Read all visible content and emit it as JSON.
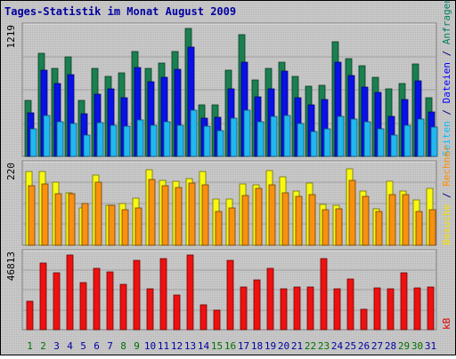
{
  "chart_data": {
    "type": "bar",
    "title": "Tages-Statistik im Monat August 2009",
    "categories": [
      "1",
      "2",
      "3",
      "4",
      "5",
      "6",
      "7",
      "8",
      "9",
      "10",
      "11",
      "12",
      "13",
      "14",
      "15",
      "16",
      "17",
      "18",
      "19",
      "20",
      "21",
      "22",
      "23",
      "24",
      "25",
      "26",
      "27",
      "28",
      "29",
      "30",
      "31"
    ],
    "weekend_days": [
      "1",
      "2",
      "8",
      "9",
      "15",
      "16",
      "22",
      "23",
      "29",
      "30"
    ],
    "panels": [
      {
        "id": "requests",
        "max_label": "1219",
        "ylim": [
          0,
          1219
        ],
        "right_label_parts": [
          {
            "text": "Seiten",
            "color": "#00BFFF"
          },
          {
            "text": " / ",
            "color": "#000080"
          },
          {
            "text": "Dateien",
            "color": "#0000FF"
          },
          {
            "text": " / ",
            "color": "#000080"
          },
          {
            "text": "Anfragen",
            "color": "#008060"
          }
        ],
        "series": [
          {
            "name": "Anfragen",
            "color": "#1A8050",
            "values": [
              530,
              980,
              840,
              945,
              530,
              835,
              765,
              795,
              1000,
              835,
              890,
              1000,
              1219,
              490,
              490,
              825,
              1160,
              725,
              840,
              900,
              765,
              670,
              680,
              1090,
              930,
              865,
              750,
              640,
              690,
              880,
              560
            ]
          },
          {
            "name": "Dateien",
            "color": "#0A10E8",
            "values": [
              415,
              820,
              690,
              780,
              405,
              595,
              640,
              560,
              850,
              710,
              750,
              830,
              1040,
              365,
              375,
              640,
              895,
              570,
              645,
              810,
              560,
              490,
              540,
              900,
              770,
              660,
              610,
              380,
              540,
              720,
              425
            ]
          },
          {
            "name": "Seiten",
            "color": "#20B8F0",
            "values": [
              265,
              390,
              330,
              315,
              205,
              325,
              300,
              285,
              345,
              300,
              330,
              300,
              440,
              285,
              245,
              360,
              440,
              330,
              385,
              390,
              310,
              240,
              265,
              380,
              355,
              330,
              265,
              205,
              300,
              355,
              280
            ]
          }
        ]
      },
      {
        "id": "visits",
        "max_label": "220",
        "ylim": [
          0,
          220
        ],
        "right_label_parts": [
          {
            "text": "Besuche",
            "color": "#F0E000"
          },
          {
            "text": " / ",
            "color": "#000080"
          },
          {
            "text": "Rechner",
            "color": "#FF8C00"
          }
        ],
        "series": [
          {
            "name": "Besuche",
            "color": "#F8F810",
            "values": [
              205,
              205,
              175,
              145,
              105,
              195,
              110,
              115,
              130,
              210,
              180,
              178,
              185,
              205,
              128,
              128,
              170,
              167,
              208,
              190,
              150,
              172,
              113,
              110,
              213,
              152,
              102,
              178,
              150,
              125,
              157
            ]
          },
          {
            "name": "Rechner",
            "color": "#F89010",
            "values": [
              165,
              170,
              143,
              143,
              115,
              175,
              112,
              98,
              105,
              182,
              165,
              160,
              173,
              168,
              93,
              103,
              138,
              158,
              168,
              145,
              135,
              140,
              99,
              102,
              180,
              136,
              94,
              140,
              142,
              94,
              98
            ]
          }
        ]
      },
      {
        "id": "kb",
        "max_label": "46813",
        "ylim": [
          0,
          46813
        ],
        "right_label_parts": [
          {
            "text": "kB",
            "color": "#E00000"
          }
        ],
        "series": [
          {
            "name": "kB",
            "color": "#F01010",
            "values": [
              18000,
              42000,
              35500,
              46813,
              29500,
              38500,
              36000,
              28500,
              43500,
              25500,
              44500,
              21500,
              46813,
              15500,
              12000,
              43500,
              26500,
              31000,
              38500,
              25500,
              26500,
              27000,
              44500,
              25500,
              31500,
              13000,
              26000,
              25500,
              35500,
              26000,
              27000
            ]
          }
        ]
      }
    ]
  }
}
